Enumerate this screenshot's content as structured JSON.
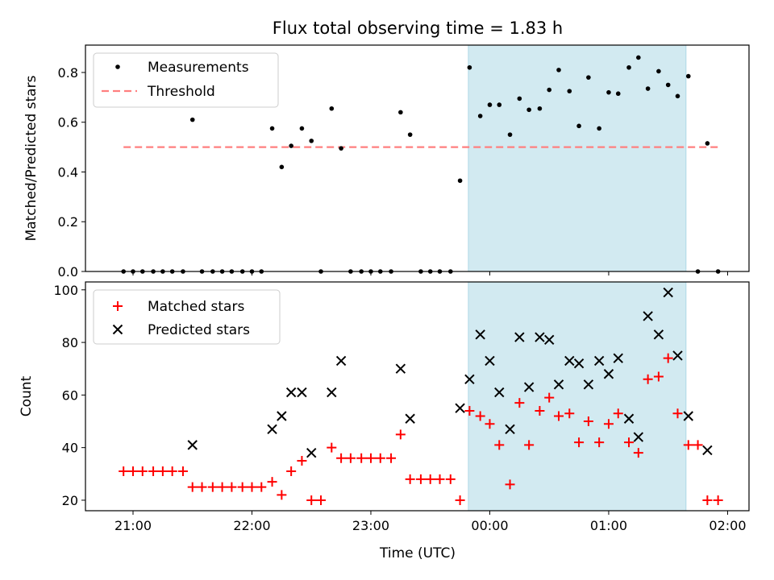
{
  "figure": {
    "title": "Flux total observing time = 1.83 h",
    "xlabel": "Time (UTC)",
    "x_ticks": [
      {
        "t": 21.0,
        "label": "21:00"
      },
      {
        "t": 22.0,
        "label": "22:00"
      },
      {
        "t": 23.0,
        "label": "23:00"
      },
      {
        "t": 24.0,
        "label": "00:00"
      },
      {
        "t": 25.0,
        "label": "01:00"
      },
      {
        "t": 26.0,
        "label": "02:00"
      }
    ],
    "xlim": [
      20.6,
      26.18
    ],
    "highlight_span": [
      23.82,
      25.65
    ],
    "colors": {
      "measure": "#000000",
      "threshold": "#ff7f7f",
      "matched": "#ff0000",
      "predicted": "#000000",
      "span": "#add8e6"
    }
  },
  "chart_data": [
    {
      "type": "scatter",
      "ylabel": "Matched/Predicted stars",
      "ylim": [
        0,
        0.91
      ],
      "y_ticks": [
        0.0,
        0.2,
        0.4,
        0.6,
        0.8
      ],
      "grid": false,
      "legend_position": "top-left",
      "threshold": {
        "name": "Threshold",
        "value": 0.5,
        "x_range": [
          20.92,
          25.92
        ]
      },
      "series": [
        {
          "name": "Measurements",
          "points": [
            [
              20.92,
              0
            ],
            [
              21.0,
              0
            ],
            [
              21.08,
              0
            ],
            [
              21.17,
              0
            ],
            [
              21.25,
              0
            ],
            [
              21.33,
              0
            ],
            [
              21.42,
              0
            ],
            [
              21.5,
              0.61
            ],
            [
              21.58,
              0
            ],
            [
              21.67,
              0
            ],
            [
              21.75,
              0
            ],
            [
              21.83,
              0
            ],
            [
              21.92,
              0
            ],
            [
              22.0,
              0
            ],
            [
              22.08,
              0
            ],
            [
              22.17,
              0.575
            ],
            [
              22.25,
              0.42
            ],
            [
              22.33,
              0.505
            ],
            [
              22.42,
              0.575
            ],
            [
              22.5,
              0.525
            ],
            [
              22.58,
              0
            ],
            [
              22.67,
              0.655
            ],
            [
              22.75,
              0.495
            ],
            [
              22.83,
              0
            ],
            [
              22.92,
              0
            ],
            [
              23.0,
              0
            ],
            [
              23.08,
              0
            ],
            [
              23.17,
              0
            ],
            [
              23.25,
              0.64
            ],
            [
              23.33,
              0.55
            ],
            [
              23.42,
              0
            ],
            [
              23.5,
              0
            ],
            [
              23.58,
              0
            ],
            [
              23.67,
              0
            ],
            [
              23.75,
              0.365
            ],
            [
              23.83,
              0.82
            ],
            [
              23.92,
              0.625
            ],
            [
              24.0,
              0.67
            ],
            [
              24.08,
              0.67
            ],
            [
              24.17,
              0.55
            ],
            [
              24.25,
              0.695
            ],
            [
              24.33,
              0.65
            ],
            [
              24.42,
              0.655
            ],
            [
              24.5,
              0.73
            ],
            [
              24.58,
              0.81
            ],
            [
              24.67,
              0.725
            ],
            [
              24.75,
              0.585
            ],
            [
              24.83,
              0.78
            ],
            [
              24.92,
              0.575
            ],
            [
              25.0,
              0.72
            ],
            [
              25.08,
              0.715
            ],
            [
              25.17,
              0.82
            ],
            [
              25.25,
              0.86
            ],
            [
              25.33,
              0.735
            ],
            [
              25.42,
              0.805
            ],
            [
              25.5,
              0.75
            ],
            [
              25.58,
              0.705
            ],
            [
              25.67,
              0.785
            ],
            [
              25.75,
              0
            ],
            [
              25.83,
              0.515
            ],
            [
              25.92,
              0
            ]
          ]
        }
      ]
    },
    {
      "type": "scatter",
      "ylabel": "Count",
      "ylim": [
        16,
        103
      ],
      "y_ticks": [
        20,
        40,
        60,
        80,
        100
      ],
      "grid": false,
      "legend_position": "top-left",
      "series": [
        {
          "name": "Matched stars",
          "marker": "plus",
          "points": [
            [
              20.92,
              31
            ],
            [
              21.0,
              31
            ],
            [
              21.08,
              31
            ],
            [
              21.17,
              31
            ],
            [
              21.25,
              31
            ],
            [
              21.33,
              31
            ],
            [
              21.42,
              31
            ],
            [
              21.5,
              25
            ],
            [
              21.58,
              25
            ],
            [
              21.67,
              25
            ],
            [
              21.75,
              25
            ],
            [
              21.83,
              25
            ],
            [
              21.92,
              25
            ],
            [
              22.0,
              25
            ],
            [
              22.08,
              25
            ],
            [
              22.17,
              27
            ],
            [
              22.25,
              22
            ],
            [
              22.33,
              31
            ],
            [
              22.42,
              35
            ],
            [
              22.5,
              20
            ],
            [
              22.58,
              20
            ],
            [
              22.67,
              40
            ],
            [
              22.75,
              36
            ],
            [
              22.83,
              36
            ],
            [
              22.92,
              36
            ],
            [
              23.0,
              36
            ],
            [
              23.08,
              36
            ],
            [
              23.17,
              36
            ],
            [
              23.25,
              45
            ],
            [
              23.33,
              28
            ],
            [
              23.42,
              28
            ],
            [
              23.5,
              28
            ],
            [
              23.58,
              28
            ],
            [
              23.67,
              28
            ],
            [
              23.75,
              20
            ],
            [
              23.83,
              54
            ],
            [
              23.92,
              52
            ],
            [
              24.0,
              49
            ],
            [
              24.08,
              41
            ],
            [
              24.17,
              26
            ],
            [
              24.25,
              57
            ],
            [
              24.33,
              41
            ],
            [
              24.42,
              54
            ],
            [
              24.5,
              59
            ],
            [
              24.58,
              52
            ],
            [
              24.67,
              53
            ],
            [
              24.75,
              42
            ],
            [
              24.83,
              50
            ],
            [
              24.92,
              42
            ],
            [
              25.0,
              49
            ],
            [
              25.08,
              53
            ],
            [
              25.17,
              42
            ],
            [
              25.25,
              38
            ],
            [
              25.33,
              66
            ],
            [
              25.42,
              67
            ],
            [
              25.5,
              74
            ],
            [
              25.58,
              53
            ],
            [
              25.67,
              41
            ],
            [
              25.75,
              41
            ],
            [
              25.83,
              20
            ],
            [
              25.92,
              20
            ]
          ]
        },
        {
          "name": "Predicted stars",
          "marker": "x",
          "points": [
            [
              21.5,
              41
            ],
            [
              22.17,
              47
            ],
            [
              22.25,
              52
            ],
            [
              22.33,
              61
            ],
            [
              22.42,
              61
            ],
            [
              22.5,
              38
            ],
            [
              22.67,
              61
            ],
            [
              22.75,
              73
            ],
            [
              23.25,
              70
            ],
            [
              23.33,
              51
            ],
            [
              23.75,
              55
            ],
            [
              23.83,
              66
            ],
            [
              23.92,
              83
            ],
            [
              24.0,
              73
            ],
            [
              24.08,
              61
            ],
            [
              24.17,
              47
            ],
            [
              24.25,
              82
            ],
            [
              24.33,
              63
            ],
            [
              24.42,
              82
            ],
            [
              24.5,
              81
            ],
            [
              24.58,
              64
            ],
            [
              24.67,
              73
            ],
            [
              24.75,
              72
            ],
            [
              24.83,
              64
            ],
            [
              24.92,
              73
            ],
            [
              25.0,
              68
            ],
            [
              25.08,
              74
            ],
            [
              25.17,
              51
            ],
            [
              25.25,
              44
            ],
            [
              25.33,
              90
            ],
            [
              25.42,
              83
            ],
            [
              25.5,
              99
            ],
            [
              25.58,
              75
            ],
            [
              25.67,
              52
            ],
            [
              25.83,
              39
            ]
          ]
        }
      ]
    }
  ]
}
